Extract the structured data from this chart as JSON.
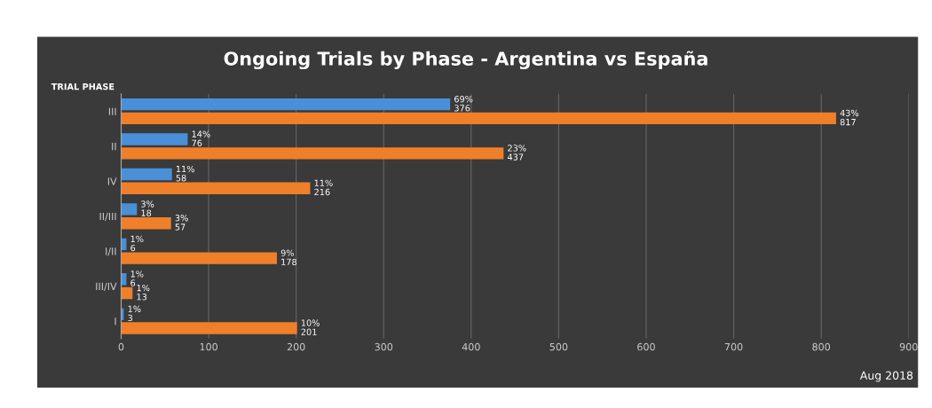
{
  "chart_data": {
    "type": "bar",
    "orientation": "horizontal",
    "title": "Ongoing Trials by Phase - Argentina vs España",
    "ylabel": "TRIAL PHASE",
    "categories": [
      "III",
      "II",
      "IV",
      "II/III",
      "I/II",
      "III/IV",
      "I"
    ],
    "series": [
      {
        "color": "#4a90d9",
        "values": [
          376,
          76,
          58,
          18,
          6,
          6,
          3
        ],
        "value_labels": [
          "69%\n376",
          "14%\n76",
          "11%\n58",
          "3%\n18",
          "1%\n6",
          "1%\n6",
          "1%\n3"
        ]
      },
      {
        "color": "#f07f2a",
        "values": [
          817,
          437,
          216,
          57,
          178,
          13,
          201
        ],
        "value_labels": [
          "43%\n817",
          "23%\n437",
          "11%\n216",
          "3%\n57",
          "9%\n178",
          "1%\n13",
          "10%\n201"
        ]
      }
    ],
    "xlim": [
      0,
      900
    ],
    "xticks": [
      0,
      100,
      200,
      300,
      400,
      500,
      600,
      700,
      800,
      900
    ],
    "grid": "x",
    "legend": false,
    "annotations": [
      "Aug 2018"
    ]
  }
}
